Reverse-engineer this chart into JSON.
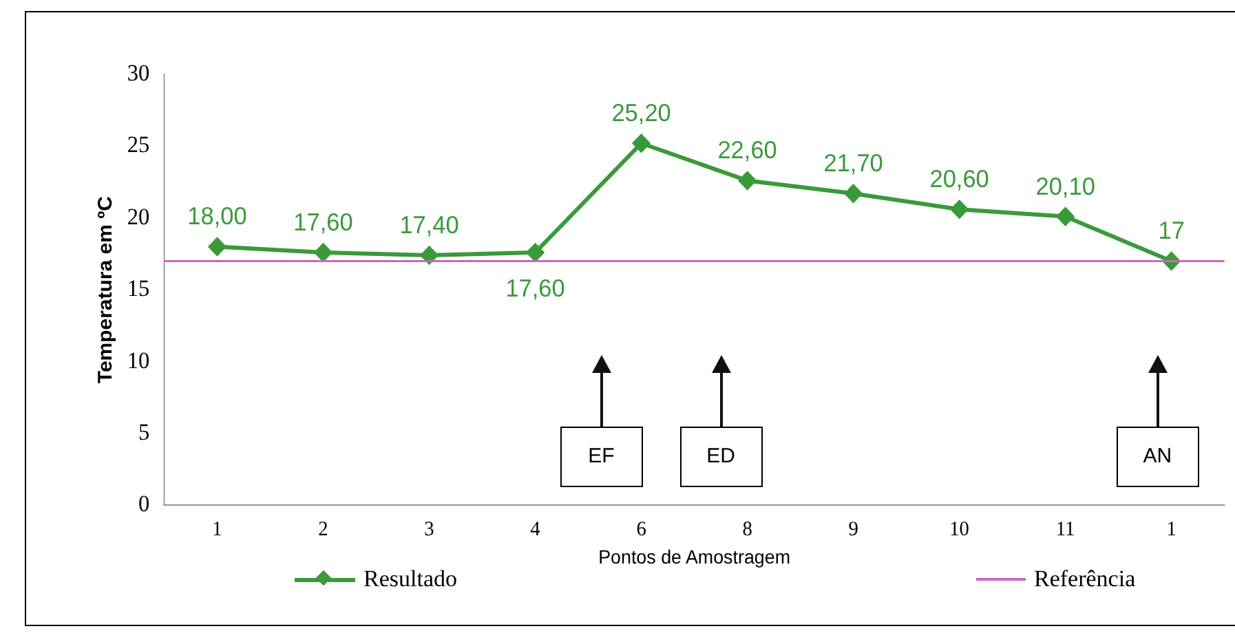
{
  "chart_data": {
    "type": "line",
    "xlabel": "Pontos de Amostragem",
    "ylabel": "Temperatura em ºC",
    "categories": [
      "1",
      "2",
      "3",
      "4",
      "6",
      "8",
      "9",
      "10",
      "11",
      "1"
    ],
    "series": [
      {
        "name": "Resultado",
        "color": "#3a9a3a",
        "values": [
          18.0,
          17.6,
          17.4,
          17.6,
          25.2,
          22.6,
          21.7,
          20.6,
          20.1,
          17.0
        ],
        "value_labels": [
          "18,00",
          "17,60",
          "17,40",
          "17,60",
          "25,20",
          "22,60",
          "21,70",
          "20,60",
          "20,10",
          "17"
        ]
      }
    ],
    "ref_lines": [
      {
        "axis": "y",
        "value": 17,
        "label": "Referência",
        "color": "#cc66bb"
      }
    ],
    "annotations": [
      "EF",
      "ED",
      "AN"
    ],
    "ylim": [
      0,
      30
    ],
    "yticks": [
      0,
      5,
      10,
      15,
      20,
      25,
      30
    ],
    "marker": "diamond",
    "grid": false,
    "legend": "bottom"
  }
}
